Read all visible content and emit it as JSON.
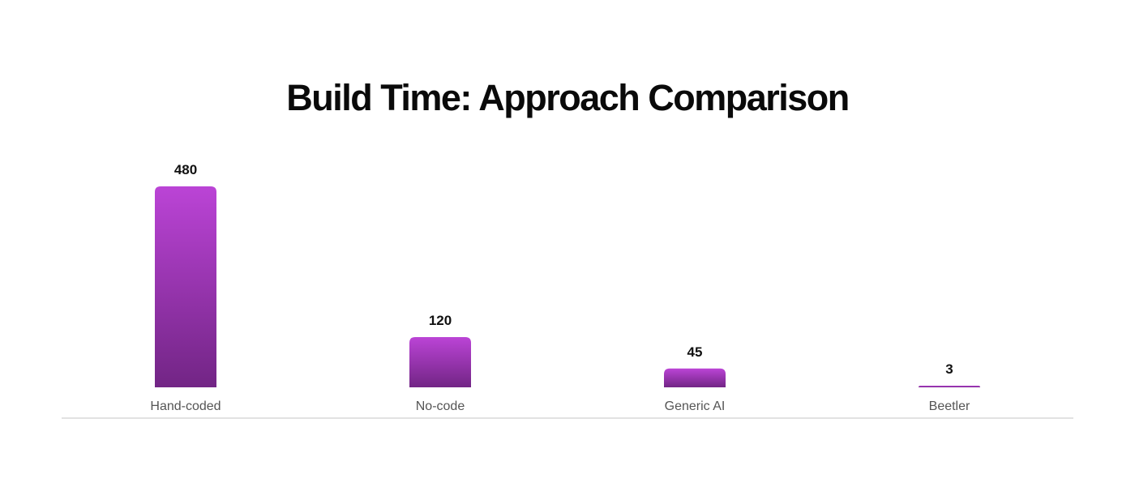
{
  "chart_data": {
    "type": "bar",
    "title": "Build Time: Approach Comparison",
    "categories": [
      "Hand-coded",
      "No-code",
      "Generic AI",
      "Beetler"
    ],
    "values": [
      480,
      120,
      45,
      3
    ],
    "data_labels": [
      "480",
      "120",
      "45",
      "3"
    ],
    "xlabel": "",
    "ylabel": "",
    "ylim": [
      0,
      480
    ],
    "grid": false,
    "legend": "none",
    "colors": {
      "bar_top": "#bb44d6",
      "bar_bottom": "#722585",
      "baseline": "#e2e2e2"
    }
  }
}
